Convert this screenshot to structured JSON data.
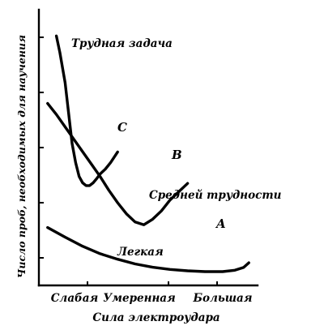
{
  "chart_data": {
    "type": "line",
    "xlabel": "Сила электроудара",
    "ylabel": "Число проб, необходимых для научения",
    "categories": [
      "Слабая",
      "Умеренная",
      "Большая"
    ],
    "series": [
      {
        "name": "Трудная задача",
        "end_label": "C",
        "x": [
          0.1,
          0.12,
          0.15,
          0.17,
          0.19,
          0.21,
          0.23,
          0.25,
          0.27,
          0.29,
          0.31,
          0.33,
          0.35,
          0.38,
          0.41,
          0.45
        ],
        "y": [
          9.05,
          8.45,
          7.35,
          6.25,
          5.15,
          4.45,
          3.95,
          3.72,
          3.62,
          3.62,
          3.72,
          3.87,
          4.04,
          4.22,
          4.46,
          4.84
        ]
      },
      {
        "name": "Средней трудности",
        "end_label": "B",
        "x": [
          0.05,
          0.1,
          0.15,
          0.2,
          0.25,
          0.3,
          0.35,
          0.4,
          0.45,
          0.5,
          0.55,
          0.6,
          0.65,
          0.7,
          0.75,
          0.8,
          0.85
        ],
        "y": [
          6.6,
          6.2,
          5.75,
          5.3,
          4.85,
          4.4,
          3.95,
          3.45,
          3.0,
          2.6,
          2.3,
          2.2,
          2.4,
          2.7,
          3.1,
          3.4,
          3.7
        ]
      },
      {
        "name": "Легкая",
        "end_label": "A",
        "x": [
          0.05,
          0.15,
          0.25,
          0.35,
          0.45,
          0.55,
          0.65,
          0.75,
          0.85,
          0.95,
          1.05,
          1.12,
          1.17,
          1.2
        ],
        "y": [
          2.1,
          1.75,
          1.42,
          1.15,
          0.95,
          0.78,
          0.66,
          0.58,
          0.53,
          0.5,
          0.5,
          0.55,
          0.65,
          0.82
        ]
      }
    ],
    "xlim": [
      0,
      1.25
    ],
    "ylim": [
      0,
      10
    ],
    "y_ticks": [
      1,
      3,
      5,
      7,
      9
    ],
    "grid": false,
    "legend": "none"
  }
}
